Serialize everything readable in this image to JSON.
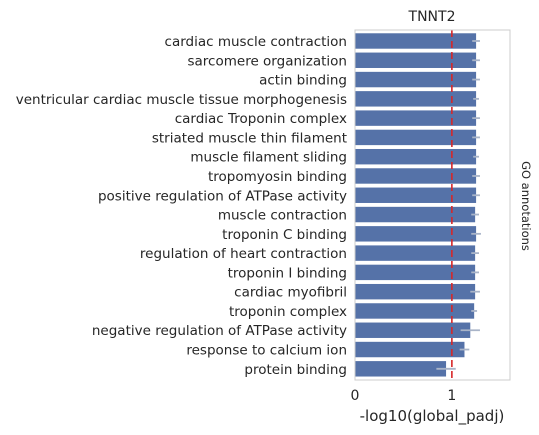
{
  "chart_data": {
    "type": "bar",
    "orientation": "horizontal",
    "title": "TNNT2",
    "xlabel": "-log10(global_padj)",
    "ylabel_right": "GO annotations",
    "xlim": [
      0,
      1.6
    ],
    "xticks": [
      0,
      1
    ],
    "threshold": 1,
    "grid": false,
    "colors": {
      "bar": "#5572a8",
      "error": "#a9b4c8",
      "threshold": "#d62728",
      "frame": "#cccccc"
    },
    "categories": [
      "cardiac muscle contraction",
      "sarcomere organization",
      "actin binding",
      "ventricular cardiac muscle tissue morphogenesis",
      "cardiac Troponin complex",
      "striated muscle thin filament",
      "muscle filament sliding",
      "tropomyosin binding",
      "positive regulation of ATPase activity",
      "muscle contraction",
      "troponin C binding",
      "regulation of heart contraction",
      "troponin I binding",
      "cardiac myofibril",
      "troponin complex",
      "negative regulation of ATPase activity",
      "response to calcium ion",
      "protein binding"
    ],
    "values": [
      1.25,
      1.25,
      1.25,
      1.25,
      1.25,
      1.25,
      1.25,
      1.25,
      1.25,
      1.24,
      1.25,
      1.24,
      1.24,
      1.24,
      1.23,
      1.19,
      1.13,
      0.94
    ],
    "errors": [
      0.04,
      0.04,
      0.04,
      0.03,
      0.04,
      0.04,
      0.03,
      0.04,
      0.04,
      0.04,
      0.05,
      0.04,
      0.04,
      0.05,
      0.03,
      0.1,
      0.05,
      0.1
    ]
  }
}
